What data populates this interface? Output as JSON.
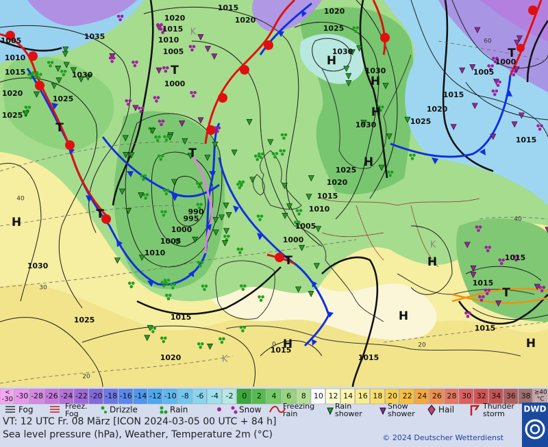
{
  "map": {
    "pressure_labels": [
      1015,
      1020,
      1020,
      1020,
      1015,
      1025,
      1035,
      1010,
      1005,
      1010,
      1005,
      1030,
      1015,
      1030,
      1030,
      1000,
      1005,
      1000,
      1020,
      1025,
      1015,
      1020,
      1025,
      1030,
      1025,
      1015,
      1025,
      1020,
      1015,
      1010,
      990,
      995,
      1005,
      1000,
      1005,
      1000,
      1010,
      1030,
      1015,
      1015,
      1015,
      1025,
      1015,
      1015,
      1015,
      1020
    ],
    "temperature_labels": [
      40,
      30,
      20,
      20,
      40,
      60,
      0
    ],
    "centers": [
      "H",
      "H",
      "H",
      "H",
      "H",
      "H",
      "H",
      "H",
      "H",
      "T",
      "T",
      "T",
      "T",
      "T",
      "T",
      "T",
      "K",
      "K",
      "K"
    ]
  },
  "legend": {
    "scale": {
      "low": {
        "top": "<",
        "bottom": "-30",
        "color": "#f4a8f4"
      },
      "values": [
        -30,
        -28,
        -26,
        -24,
        -22,
        -20,
        -18,
        -16,
        -14,
        -12,
        -10,
        -8,
        -6,
        -4,
        -2,
        0,
        2,
        4,
        6,
        8,
        10,
        12,
        14,
        16,
        18,
        20,
        22,
        24,
        26,
        28,
        30,
        32,
        34,
        36,
        38
      ],
      "colors": [
        "#e898ec",
        "#d888e4",
        "#c878dc",
        "#b470d8",
        "#a068d8",
        "#8468dc",
        "#6c78e4",
        "#5888ec",
        "#4c98f0",
        "#4ca8f0",
        "#5cb8f0",
        "#70c8f0",
        "#88d6f0",
        "#a0e0ec",
        "#b8e8e4",
        "#3aa83a",
        "#54bc4c",
        "#74cc64",
        "#94d67c",
        "#b4e096",
        "#ffffff",
        "#fffed0",
        "#fff6b0",
        "#f8ee90",
        "#f8e070",
        "#f8d050",
        "#f8c040",
        "#f6a840",
        "#f09050",
        "#e87860",
        "#e06060",
        "#d45454",
        "#c45454",
        "#b06060",
        "#a07070"
      ],
      "high": {
        "top": "≥40",
        "bottom": "°C",
        "color": "#c8a8a8"
      }
    },
    "weather": [
      {
        "lines": [
          "Fog"
        ]
      },
      {
        "lines": [
          "Freez.",
          "Fog"
        ]
      },
      {
        "lines": [
          "Drizzle"
        ]
      },
      {
        "lines": [
          "Rain"
        ]
      },
      {
        "lines": [
          "Snow"
        ]
      },
      {
        "lines": [
          "Freezing",
          "rain"
        ]
      },
      {
        "lines": [
          "Rain",
          "shower"
        ]
      },
      {
        "lines": [
          "Snow",
          "shower"
        ]
      },
      {
        "lines": [
          "Hail"
        ]
      },
      {
        "lines": [
          "Thunder",
          "storm"
        ]
      }
    ]
  },
  "footer": {
    "valid_time": "VT: 12 UTC Fr.  08 März [ICON 2024-03-05  00 UTC + 84 h]",
    "description": "Sea level pressure (hPa), Weather, Temperature 2m (°C)",
    "copyright": "© 2024 Deutscher Wetterdienst",
    "logo": "DWD"
  }
}
